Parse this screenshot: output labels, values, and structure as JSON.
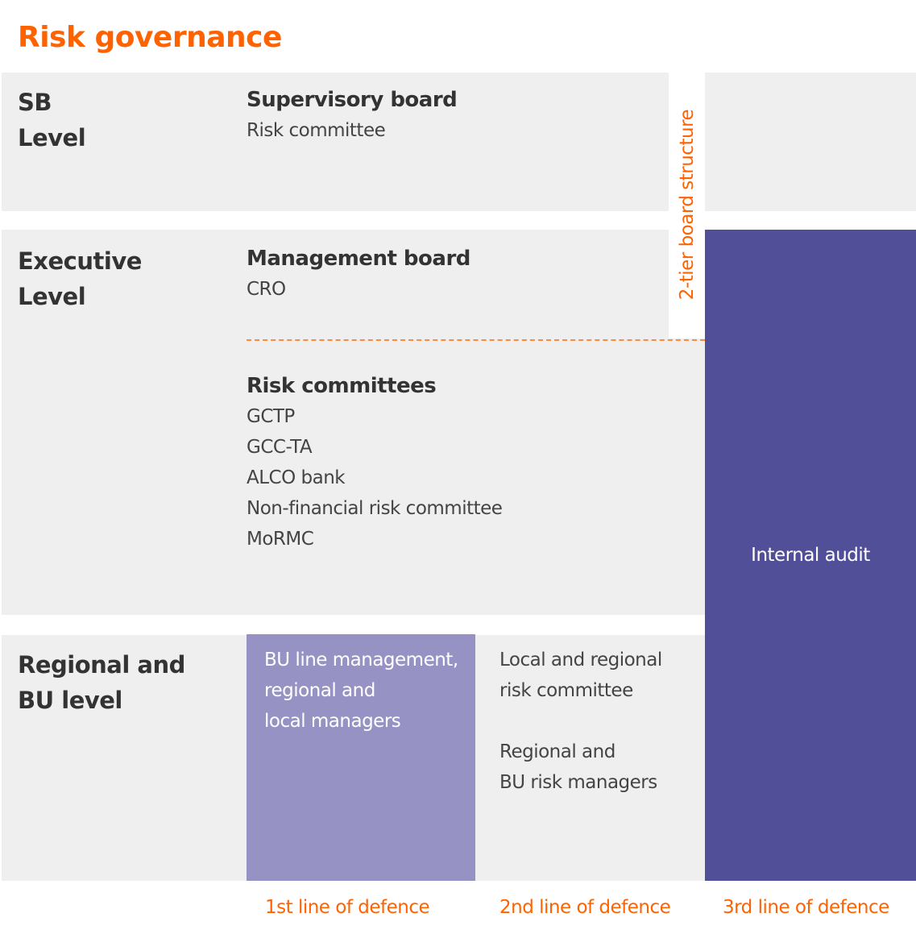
{
  "title": "Risk governance",
  "colors": {
    "accent": "#ff6200",
    "audit": "#524f99",
    "first_line": "#9693c4",
    "panel": "#efefef"
  },
  "side_label": "2-tier board structure",
  "levels": {
    "sb": {
      "label_line1": "SB",
      "label_line2": "Level",
      "heading": "Supervisory board",
      "items": [
        "Risk committee"
      ]
    },
    "executive": {
      "label_line1": "Executive",
      "label_line2": "Level",
      "heading": "Management board",
      "items": [
        "CRO"
      ],
      "committees_heading": "Risk committees",
      "committees": [
        "GCTP",
        "GCC-TA",
        "ALCO bank",
        "Non-financial risk committee",
        "MoRMC"
      ]
    },
    "regional": {
      "label_line1": "Regional and",
      "label_line2": "BU level",
      "first_line_box": [
        "BU line management,",
        "regional and",
        "local managers"
      ],
      "second_line_box": [
        "Local and regional",
        "risk committee",
        "",
        "Regional and",
        "BU risk managers"
      ]
    }
  },
  "internal_audit": "Internal audit",
  "footer": [
    "1st line of defence",
    "2nd line of defence",
    "3rd line of defence"
  ]
}
